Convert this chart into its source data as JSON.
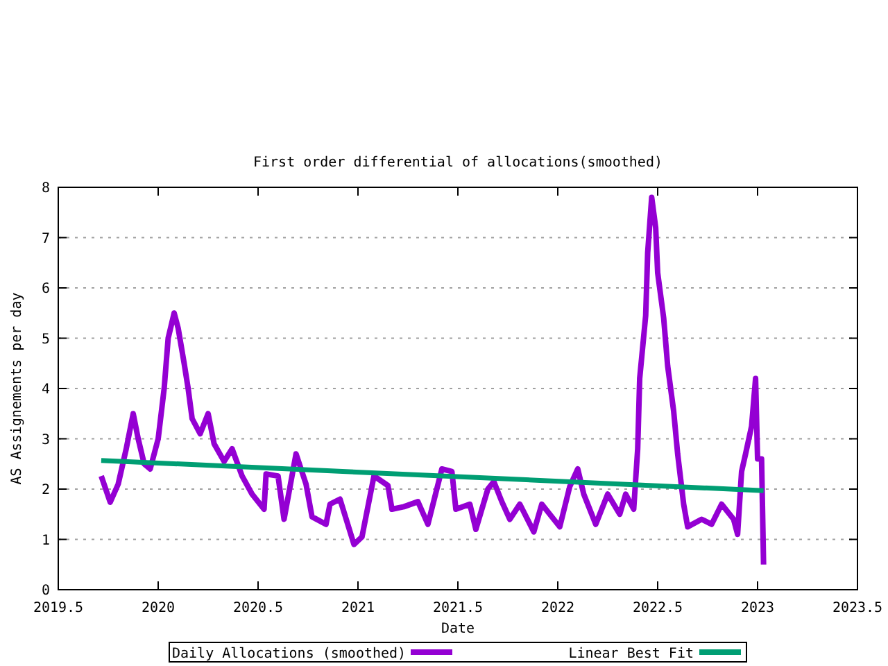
{
  "chart_data": {
    "type": "line",
    "title": "First order differential of allocations(smoothed)",
    "xlabel": "Date",
    "ylabel": "AS Assignements per day",
    "xlim": [
      2019.5,
      2023.5
    ],
    "xticks": [
      2019.5,
      2020,
      2020.5,
      2021,
      2021.5,
      2022,
      2022.5,
      2023,
      2023.5
    ],
    "ylim": [
      0,
      8
    ],
    "yticks": [
      0,
      1,
      2,
      3,
      4,
      5,
      6,
      7,
      8
    ],
    "grid": "y",
    "legend": "bottom",
    "marker": "none",
    "line_style": "solid",
    "series": [
      {
        "name": "Daily Allocations (smoothed)",
        "color": "#9400d3",
        "x": [
          2019.715,
          2019.76,
          2019.8,
          2019.84,
          2019.875,
          2019.9,
          2019.93,
          2019.96,
          2020.0,
          2020.03,
          2020.05,
          2020.08,
          2020.1,
          2020.13,
          2020.15,
          2020.17,
          2020.21,
          2020.25,
          2020.28,
          2020.33,
          2020.37,
          2020.42,
          2020.47,
          2020.53,
          2020.54,
          2020.6,
          2020.63,
          2020.69,
          2020.74,
          2020.77,
          2020.84,
          2020.86,
          2020.91,
          2020.98,
          2021.02,
          2021.08,
          2021.15,
          2021.17,
          2021.23,
          2021.3,
          2021.35,
          2021.42,
          2021.47,
          2021.49,
          2021.56,
          2021.59,
          2021.65,
          2021.68,
          2021.72,
          2021.76,
          2021.81,
          2021.88,
          2021.92,
          2022.01,
          2022.06,
          2022.1,
          2022.13,
          2022.19,
          2022.25,
          2022.31,
          2022.34,
          2022.38,
          2022.4,
          2022.41,
          2022.44,
          2022.45,
          2022.47,
          2022.49,
          2022.5,
          2022.53,
          2022.55,
          2022.58,
          2022.6,
          2022.63,
          2022.65,
          2022.72,
          2022.77,
          2022.82,
          2022.88,
          2022.9,
          2022.92,
          2022.94,
          2022.97,
          2022.99,
          2023.0,
          2023.02,
          2023.03
        ],
        "values": [
          2.26,
          1.74,
          2.1,
          2.8,
          3.5,
          3.0,
          2.5,
          2.4,
          3.0,
          4.0,
          5.0,
          5.5,
          5.2,
          4.5,
          4.0,
          3.4,
          3.1,
          3.5,
          2.9,
          2.55,
          2.8,
          2.26,
          1.9,
          1.6,
          2.3,
          2.26,
          1.4,
          2.7,
          2.1,
          1.45,
          1.3,
          1.7,
          1.8,
          0.9,
          1.05,
          2.26,
          2.07,
          1.6,
          1.65,
          1.75,
          1.3,
          2.4,
          2.35,
          1.6,
          1.7,
          1.2,
          2.0,
          2.15,
          1.75,
          1.4,
          1.7,
          1.15,
          1.7,
          1.25,
          2.05,
          2.4,
          1.9,
          1.3,
          1.9,
          1.5,
          1.9,
          1.6,
          2.8,
          4.2,
          5.45,
          6.7,
          7.8,
          7.2,
          6.3,
          5.4,
          4.45,
          3.55,
          2.7,
          1.7,
          1.25,
          1.4,
          1.3,
          1.7,
          1.4,
          1.1,
          2.35,
          2.7,
          3.25,
          4.2,
          2.6,
          2.6,
          0.5
        ]
      },
      {
        "name": "Linear Best Fit",
        "color": "#009e73",
        "x": [
          2019.715,
          2023.03
        ],
        "values": [
          2.57,
          1.97
        ]
      }
    ]
  }
}
